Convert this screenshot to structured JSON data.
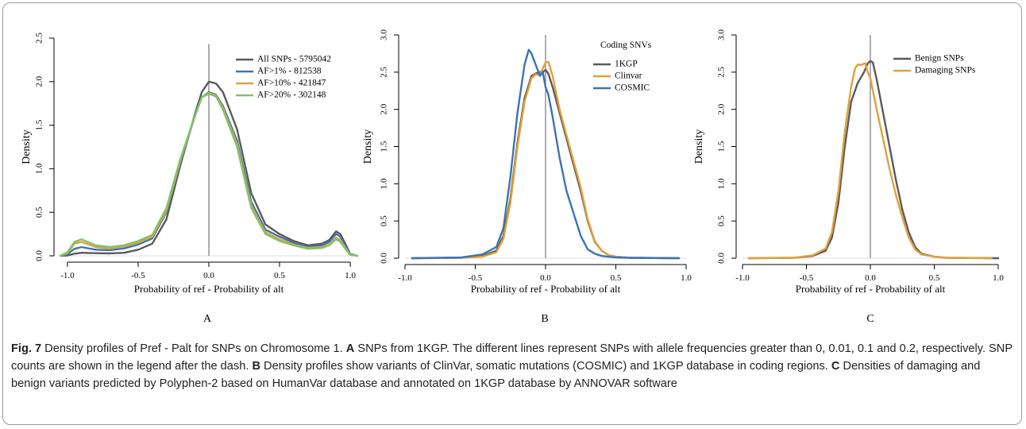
{
  "figure": {
    "caption_label": "Fig. 7",
    "caption_segments": [
      {
        "bold": false,
        "text": " Density profiles of Pref - Palt for SNPs on Chromosome 1. "
      },
      {
        "bold": true,
        "text": "A"
      },
      {
        "bold": false,
        "text": " SNPs from 1KGP. The different lines represent SNPs with allele frequencies greater than 0, 0.01, 0.1 and 0.2, respectively. SNP counts are shown in the legend after the dash. "
      },
      {
        "bold": true,
        "text": "B"
      },
      {
        "bold": false,
        "text": " Density profiles show variants of ClinVar, somatic mutations (COSMIC) and 1KGP database in coding regions. "
      },
      {
        "bold": true,
        "text": "C"
      },
      {
        "bold": false,
        "text": " Densities of damaging and benign variants predicted by Polyphen-2 based on HumanVar database and annotated on 1KGP database by ANNOVAR software"
      }
    ]
  },
  "chart_data": [
    {
      "type": "line",
      "panel_label": "A",
      "xlabel": "Probability of ref - Probability of alt",
      "ylabel": "Density",
      "xlim": [
        -1.05,
        1.05
      ],
      "ylim": [
        0,
        2.5
      ],
      "x_ticks": [
        -1.0,
        -0.5,
        0.0,
        0.5,
        1.0
      ],
      "x_tick_labels": [
        "-1.0",
        "-0.5",
        "0.0",
        "0.5",
        "1.0"
      ],
      "y_ticks": [
        0,
        0.5,
        1.0,
        1.5,
        2.0,
        2.5
      ],
      "y_tick_labels": [
        "0.0",
        "0.5",
        "1.0",
        "1.5",
        "2.0",
        "2.5"
      ],
      "vline_x": 0,
      "vline_top": 2.43,
      "legend_title": "",
      "legend_position": "top-right",
      "series": [
        {
          "name": "All SNPs - 5795042",
          "color": "#5a5a5a",
          "x": [
            -1.05,
            -1.0,
            -0.95,
            -0.9,
            -0.8,
            -0.7,
            -0.6,
            -0.5,
            -0.4,
            -0.3,
            -0.2,
            -0.1,
            -0.05,
            0,
            0.05,
            0.1,
            0.2,
            0.3,
            0.4,
            0.5,
            0.6,
            0.7,
            0.8,
            0.85,
            0.9,
            0.93,
            0.97,
            1.0,
            1.05
          ],
          "y": [
            0,
            0.005,
            0.025,
            0.035,
            0.03,
            0.028,
            0.035,
            0.07,
            0.14,
            0.42,
            1.05,
            1.62,
            1.88,
            2.0,
            1.98,
            1.88,
            1.45,
            0.72,
            0.36,
            0.25,
            0.17,
            0.12,
            0.14,
            0.18,
            0.28,
            0.25,
            0.12,
            0.02,
            0
          ]
        },
        {
          "name": "AF>1% - 812538",
          "color": "#3b73b6",
          "x": [
            -1.05,
            -1.0,
            -0.95,
            -0.9,
            -0.8,
            -0.7,
            -0.6,
            -0.5,
            -0.4,
            -0.3,
            -0.2,
            -0.1,
            -0.05,
            0,
            0.05,
            0.1,
            0.2,
            0.3,
            0.4,
            0.5,
            0.6,
            0.7,
            0.8,
            0.85,
            0.9,
            0.93,
            0.97,
            1.0,
            1.05
          ],
          "y": [
            0,
            0.02,
            0.08,
            0.1,
            0.07,
            0.065,
            0.085,
            0.13,
            0.2,
            0.5,
            1.08,
            1.6,
            1.82,
            1.88,
            1.85,
            1.72,
            1.32,
            0.62,
            0.3,
            0.22,
            0.15,
            0.1,
            0.12,
            0.16,
            0.25,
            0.22,
            0.1,
            0.02,
            0
          ]
        },
        {
          "name": "AF>10% - 421847",
          "color": "#e1a03a",
          "x": [
            -1.05,
            -1.0,
            -0.95,
            -0.9,
            -0.8,
            -0.7,
            -0.6,
            -0.5,
            -0.4,
            -0.3,
            -0.2,
            -0.1,
            -0.05,
            0,
            0.05,
            0.1,
            0.2,
            0.3,
            0.4,
            0.5,
            0.6,
            0.7,
            0.8,
            0.85,
            0.9,
            0.93,
            0.97,
            1.0,
            1.05
          ],
          "y": [
            0,
            0.03,
            0.14,
            0.16,
            0.1,
            0.085,
            0.105,
            0.15,
            0.22,
            0.52,
            1.1,
            1.6,
            1.82,
            1.87,
            1.84,
            1.7,
            1.28,
            0.58,
            0.27,
            0.19,
            0.13,
            0.09,
            0.1,
            0.13,
            0.21,
            0.18,
            0.08,
            0.015,
            0
          ]
        },
        {
          "name": "AF>20% - 302148",
          "color": "#7cc46a",
          "x": [
            -1.05,
            -1.0,
            -0.95,
            -0.9,
            -0.8,
            -0.7,
            -0.6,
            -0.5,
            -0.4,
            -0.3,
            -0.2,
            -0.1,
            -0.05,
            0,
            0.05,
            0.1,
            0.2,
            0.3,
            0.4,
            0.5,
            0.6,
            0.7,
            0.8,
            0.85,
            0.9,
            0.93,
            0.97,
            1.0,
            1.05
          ],
          "y": [
            0,
            0.04,
            0.16,
            0.19,
            0.12,
            0.1,
            0.12,
            0.17,
            0.24,
            0.55,
            1.12,
            1.6,
            1.82,
            1.86,
            1.83,
            1.68,
            1.25,
            0.55,
            0.25,
            0.17,
            0.12,
            0.08,
            0.09,
            0.12,
            0.19,
            0.16,
            0.07,
            0.01,
            0
          ]
        }
      ]
    },
    {
      "type": "line",
      "panel_label": "B",
      "xlabel": "Probability of ref - Probability of alt",
      "ylabel": "Density",
      "xlim": [
        -1.0,
        1.0
      ],
      "ylim": [
        0,
        3.0
      ],
      "x_ticks": [
        -1.0,
        -0.5,
        0.0,
        0.5,
        1.0
      ],
      "x_tick_labels": [
        "-1.0",
        "-0.5",
        "0.0",
        "0.5",
        "1.0"
      ],
      "y_ticks": [
        0,
        0.5,
        1.0,
        1.5,
        2.0,
        2.5,
        3.0
      ],
      "y_tick_labels": [
        "0.0",
        "0.5",
        "1.0",
        "1.5",
        "2.0",
        "2.5",
        "3.0"
      ],
      "vline_x": 0,
      "vline_top": 3.0,
      "legend_title": "Coding SNVs",
      "legend_position": "top-right",
      "series": [
        {
          "name": "1KGP",
          "color": "#5a5a5a",
          "x": [
            -0.95,
            -0.6,
            -0.45,
            -0.35,
            -0.3,
            -0.25,
            -0.2,
            -0.15,
            -0.1,
            -0.05,
            -0.02,
            0,
            0.02,
            0.05,
            0.1,
            0.15,
            0.2,
            0.25,
            0.3,
            0.35,
            0.4,
            0.45,
            0.5,
            0.6,
            0.95
          ],
          "y": [
            0,
            0.005,
            0.03,
            0.1,
            0.3,
            0.8,
            1.55,
            2.15,
            2.45,
            2.5,
            2.5,
            2.53,
            2.48,
            2.3,
            1.95,
            1.6,
            1.25,
            0.9,
            0.5,
            0.22,
            0.1,
            0.04,
            0.02,
            0.005,
            0
          ]
        },
        {
          "name": "Clinvar",
          "color": "#e1a03a",
          "x": [
            -0.95,
            -0.6,
            -0.45,
            -0.35,
            -0.3,
            -0.25,
            -0.2,
            -0.15,
            -0.1,
            -0.07,
            -0.04,
            -0.02,
            0,
            0.02,
            0.05,
            0.1,
            0.15,
            0.2,
            0.25,
            0.3,
            0.35,
            0.4,
            0.45,
            0.5,
            0.6,
            0.95
          ],
          "y": [
            0,
            0.005,
            0.02,
            0.08,
            0.26,
            0.75,
            1.5,
            2.1,
            2.42,
            2.47,
            2.46,
            2.55,
            2.63,
            2.64,
            2.45,
            2.0,
            1.65,
            1.3,
            0.95,
            0.52,
            0.23,
            0.1,
            0.04,
            0.02,
            0.005,
            0
          ]
        },
        {
          "name": "COSMIC",
          "color": "#3b73b6",
          "x": [
            -0.95,
            -0.6,
            -0.45,
            -0.35,
            -0.3,
            -0.25,
            -0.2,
            -0.15,
            -0.12,
            -0.1,
            -0.07,
            -0.04,
            -0.02,
            0,
            0.02,
            0.05,
            0.1,
            0.15,
            0.2,
            0.25,
            0.3,
            0.35,
            0.4,
            0.5,
            0.6,
            0.95
          ],
          "y": [
            0,
            0.01,
            0.05,
            0.15,
            0.4,
            1.1,
            1.95,
            2.6,
            2.8,
            2.75,
            2.6,
            2.45,
            2.5,
            2.3,
            2.2,
            1.9,
            1.35,
            0.9,
            0.6,
            0.3,
            0.12,
            0.06,
            0.03,
            0.01,
            0.005,
            0
          ]
        }
      ]
    },
    {
      "type": "line",
      "panel_label": "C",
      "xlabel": "Probability of ref - Probability of alt",
      "ylabel": "Density",
      "xlim": [
        -1.0,
        1.0
      ],
      "ylim": [
        0,
        3.0
      ],
      "x_ticks": [
        -1.0,
        -0.5,
        0.0,
        0.5,
        1.0
      ],
      "x_tick_labels": [
        "-1.0",
        "-0.5",
        "0.0",
        "0.5",
        "1.0"
      ],
      "y_ticks": [
        0,
        0.5,
        1.0,
        1.5,
        2.0,
        2.5,
        3.0
      ],
      "y_tick_labels": [
        "0.0",
        "0.5",
        "1.0",
        "1.5",
        "2.0",
        "2.5",
        "3.0"
      ],
      "vline_x": 0,
      "vline_top": 3.0,
      "legend_title": "",
      "legend_position": "top-right",
      "series": [
        {
          "name": "Benign SNPs",
          "color": "#5a5a5a",
          "x": [
            -0.95,
            -0.6,
            -0.45,
            -0.35,
            -0.3,
            -0.25,
            -0.2,
            -0.15,
            -0.1,
            -0.05,
            -0.02,
            0,
            0.02,
            0.05,
            0.1,
            0.15,
            0.2,
            0.25,
            0.3,
            0.35,
            0.4,
            0.5,
            0.6,
            1.0
          ],
          "y": [
            0,
            0.005,
            0.03,
            0.1,
            0.28,
            0.75,
            1.5,
            2.1,
            2.35,
            2.5,
            2.62,
            2.65,
            2.63,
            2.4,
            1.95,
            1.5,
            1.05,
            0.65,
            0.35,
            0.15,
            0.06,
            0.02,
            0.005,
            0
          ]
        },
        {
          "name": "Damaging SNPs",
          "color": "#e1a03a",
          "x": [
            -0.95,
            -0.6,
            -0.45,
            -0.35,
            -0.3,
            -0.25,
            -0.2,
            -0.15,
            -0.12,
            -0.1,
            -0.07,
            -0.04,
            -0.02,
            0,
            0.02,
            0.05,
            0.1,
            0.15,
            0.2,
            0.25,
            0.3,
            0.35,
            0.4,
            0.5,
            0.6,
            0.95
          ],
          "y": [
            0,
            0.005,
            0.04,
            0.13,
            0.35,
            0.9,
            1.7,
            2.3,
            2.55,
            2.6,
            2.6,
            2.62,
            2.5,
            2.42,
            2.25,
            2.0,
            1.6,
            1.2,
            0.85,
            0.55,
            0.28,
            0.12,
            0.05,
            0.02,
            0.005,
            0
          ]
        }
      ]
    }
  ]
}
